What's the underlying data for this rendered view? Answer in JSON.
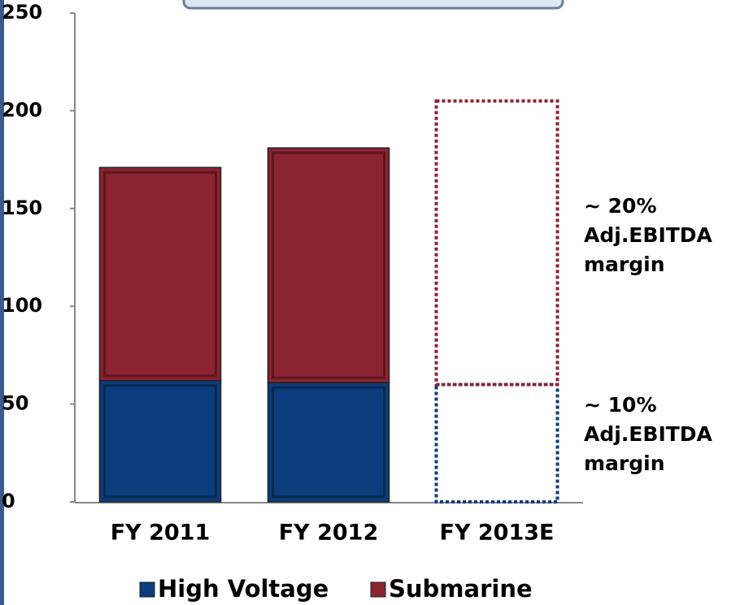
{
  "chart_data": {
    "type": "stacked_bar",
    "categories": [
      "FY 2011",
      "FY 2012",
      "FY 2013E"
    ],
    "series": [
      {
        "name": "High Voltage",
        "color": "#0b3d7c",
        "values": [
          62,
          61,
          60
        ]
      },
      {
        "name": "Submarine",
        "color": "#8c2330",
        "values": [
          109,
          120,
          145
        ]
      }
    ],
    "outline_only": [
      false,
      false,
      true
    ],
    "ylim": [
      0,
      250
    ],
    "yticks": [
      0,
      50,
      100,
      150,
      200,
      250
    ],
    "annotations": [
      {
        "lines": [
          "~ 20%",
          "Adj.EBITDA",
          "margin"
        ]
      },
      {
        "lines": [
          "~ 10%",
          "Adj.EBITDA",
          "margin"
        ]
      }
    ],
    "legend": "bottom"
  }
}
